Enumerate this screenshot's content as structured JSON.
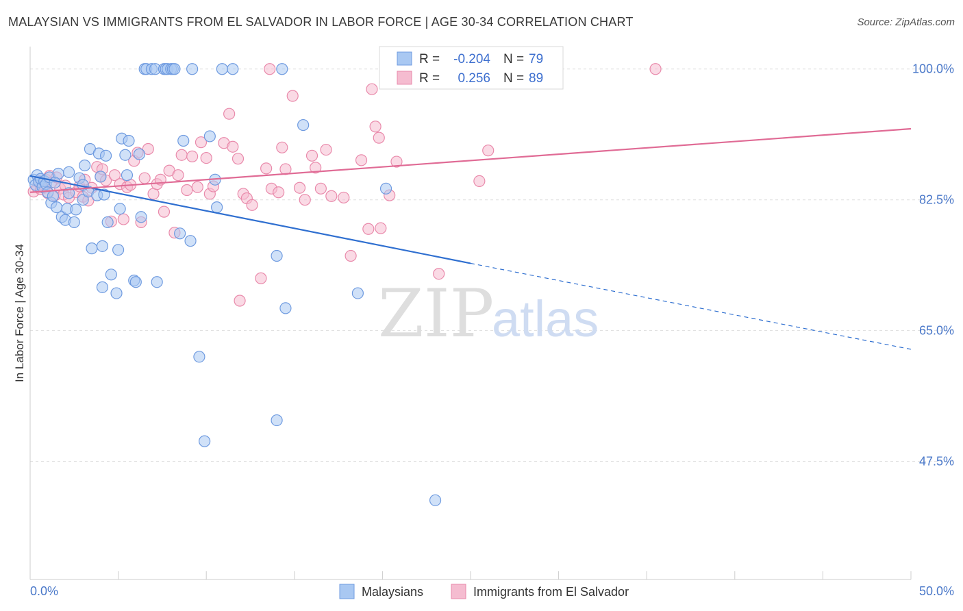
{
  "title": "MALAYSIAN VS IMMIGRANTS FROM EL SALVADOR IN LABOR FORCE | AGE 30-34 CORRELATION CHART",
  "source": "Source: ZipAtlas.com",
  "colors": {
    "blue_fill": "#a9c8f2",
    "blue_stroke": "#6f9be0",
    "blue_line": "#2f6fd0",
    "pink_fill": "#f5bcd0",
    "pink_stroke": "#e98aab",
    "pink_line": "#e06b95",
    "axis_label": "#4a78c9",
    "grid": "#dddddd"
  },
  "legend": {
    "r_label": "R =",
    "n_label": "N =",
    "rows": [
      {
        "series": "blue",
        "r": "-0.204",
        "n": "79"
      },
      {
        "series": "pink",
        "r": "0.256",
        "n": "89"
      }
    ]
  },
  "watermark": {
    "zip": "ZIP",
    "atlas": "atlas"
  },
  "chart_data": {
    "type": "scatter",
    "title": "MALAYSIAN VS IMMIGRANTS FROM EL SALVADOR IN LABOR FORCE | AGE 30-34 CORRELATION CHART",
    "xlabel": "",
    "ylabel": "In Labor Force | Age 30-34",
    "xlim": [
      0,
      50
    ],
    "ylim": [
      31.7,
      103
    ],
    "x_tick_labels": [
      "0.0%",
      "50.0%"
    ],
    "y_ticks": [
      47.5,
      65.0,
      82.5,
      100.0
    ],
    "y_tick_labels": [
      "47.5%",
      "65.0%",
      "82.5%",
      "100.0%"
    ],
    "grid": true,
    "legend_position": "bottom-center",
    "series": [
      {
        "name": "Malaysians",
        "r": -0.204,
        "n": 79,
        "trend": {
          "x0": 0,
          "y0": 85.7,
          "x1": 25,
          "y1": 74.0,
          "dash_x1": 50,
          "dash_y1": 62.5
        },
        "points": [
          [
            0.2,
            85.2
          ],
          [
            0.3,
            84.5
          ],
          [
            0.4,
            85.8
          ],
          [
            0.5,
            84.9
          ],
          [
            0.6,
            85.3
          ],
          [
            0.7,
            84.2
          ],
          [
            0.8,
            85.0
          ],
          [
            0.9,
            84.6
          ],
          [
            1.0,
            83.5
          ],
          [
            1.1,
            85.5
          ],
          [
            1.2,
            82.1
          ],
          [
            1.3,
            83.0
          ],
          [
            1.5,
            81.5
          ],
          [
            1.6,
            86.0
          ],
          [
            1.8,
            80.2
          ],
          [
            2.0,
            79.8
          ],
          [
            2.1,
            81.3
          ],
          [
            2.2,
            83.4
          ],
          [
            2.5,
            79.5
          ],
          [
            2.6,
            81.2
          ],
          [
            2.8,
            85.4
          ],
          [
            3.0,
            82.5
          ],
          [
            3.1,
            87.1
          ],
          [
            3.3,
            83.6
          ],
          [
            3.4,
            89.3
          ],
          [
            3.5,
            76.0
          ],
          [
            3.8,
            83.1
          ],
          [
            3.9,
            88.7
          ],
          [
            4.0,
            85.6
          ],
          [
            4.1,
            70.8
          ],
          [
            4.2,
            83.2
          ],
          [
            4.3,
            88.4
          ],
          [
            4.4,
            79.5
          ],
          [
            4.6,
            72.5
          ],
          [
            4.9,
            70.0
          ],
          [
            5.0,
            75.8
          ],
          [
            5.1,
            81.3
          ],
          [
            5.2,
            90.7
          ],
          [
            5.4,
            88.5
          ],
          [
            5.5,
            85.8
          ],
          [
            5.6,
            90.4
          ],
          [
            5.9,
            71.7
          ],
          [
            6.2,
            88.6
          ],
          [
            6.3,
            80.2
          ],
          [
            6.5,
            100.0
          ],
          [
            6.6,
            100.0
          ],
          [
            6.9,
            100.0
          ],
          [
            7.1,
            100.0
          ],
          [
            7.6,
            100.0
          ],
          [
            7.7,
            100.0
          ],
          [
            7.8,
            100.0
          ],
          [
            8.0,
            100.0
          ],
          [
            8.1,
            100.0
          ],
          [
            8.2,
            100.0
          ],
          [
            8.5,
            78.0
          ],
          [
            8.7,
            90.4
          ],
          [
            9.1,
            77.0
          ],
          [
            9.6,
            61.5
          ],
          [
            9.9,
            50.2
          ],
          [
            9.2,
            100.0
          ],
          [
            10.2,
            91.0
          ],
          [
            10.5,
            85.2
          ],
          [
            10.6,
            81.5
          ],
          [
            10.9,
            100.0
          ],
          [
            11.5,
            100.0
          ],
          [
            14.0,
            75.0
          ],
          [
            14.0,
            53.0
          ],
          [
            14.3,
            100.0
          ],
          [
            14.5,
            68.0
          ],
          [
            15.5,
            92.5
          ],
          [
            18.6,
            70.0
          ],
          [
            20.2,
            84.0
          ],
          [
            23.0,
            42.3
          ],
          [
            6.0,
            71.5
          ],
          [
            7.2,
            71.5
          ],
          [
            2.2,
            86.2
          ],
          [
            3.0,
            84.5
          ],
          [
            4.1,
            76.3
          ],
          [
            1.4,
            84.8
          ]
        ]
      },
      {
        "name": "Immigrants from El Salvador",
        "r": 0.256,
        "n": 89,
        "trend": {
          "x0": 0,
          "y0": 83.5,
          "x1": 50,
          "y1": 92.0
        },
        "points": [
          [
            0.2,
            83.6
          ],
          [
            0.4,
            84.2
          ],
          [
            0.5,
            85.0
          ],
          [
            0.6,
            83.9
          ],
          [
            0.7,
            84.6
          ],
          [
            0.8,
            84.1
          ],
          [
            0.9,
            85.2
          ],
          [
            1.0,
            83.4
          ],
          [
            1.1,
            85.7
          ],
          [
            1.2,
            84.8
          ],
          [
            1.4,
            83.1
          ],
          [
            1.5,
            85.5
          ],
          [
            1.7,
            84.0
          ],
          [
            1.9,
            83.2
          ],
          [
            2.0,
            84.4
          ],
          [
            2.2,
            82.8
          ],
          [
            2.6,
            83.5
          ],
          [
            2.8,
            84.3
          ],
          [
            3.0,
            82.9
          ],
          [
            3.1,
            85.2
          ],
          [
            3.3,
            82.4
          ],
          [
            3.5,
            84.1
          ],
          [
            3.8,
            86.9
          ],
          [
            4.0,
            85.6
          ],
          [
            4.1,
            86.6
          ],
          [
            4.3,
            85.1
          ],
          [
            4.6,
            79.6
          ],
          [
            4.8,
            85.8
          ],
          [
            5.1,
            84.6
          ],
          [
            5.3,
            79.9
          ],
          [
            5.5,
            84.2
          ],
          [
            5.7,
            84.5
          ],
          [
            5.9,
            87.7
          ],
          [
            6.1,
            88.8
          ],
          [
            6.3,
            79.5
          ],
          [
            6.5,
            85.4
          ],
          [
            6.7,
            89.3
          ],
          [
            7.0,
            83.3
          ],
          [
            7.2,
            84.6
          ],
          [
            7.4,
            85.2
          ],
          [
            7.6,
            80.9
          ],
          [
            7.9,
            86.4
          ],
          [
            8.2,
            78.1
          ],
          [
            8.4,
            85.8
          ],
          [
            8.6,
            88.5
          ],
          [
            8.9,
            83.8
          ],
          [
            9.2,
            88.3
          ],
          [
            9.5,
            84.2
          ],
          [
            9.7,
            90.2
          ],
          [
            10.0,
            88.1
          ],
          [
            10.2,
            83.3
          ],
          [
            10.4,
            84.3
          ],
          [
            11.0,
            90.1
          ],
          [
            11.3,
            94.0
          ],
          [
            11.5,
            89.6
          ],
          [
            11.8,
            88.0
          ],
          [
            12.1,
            83.3
          ],
          [
            12.3,
            82.7
          ],
          [
            12.6,
            81.8
          ],
          [
            13.1,
            72.0
          ],
          [
            13.4,
            86.7
          ],
          [
            13.7,
            84.0
          ],
          [
            14.1,
            83.5
          ],
          [
            14.3,
            89.5
          ],
          [
            14.5,
            86.6
          ],
          [
            14.9,
            96.4
          ],
          [
            15.3,
            84.1
          ],
          [
            15.6,
            82.5
          ],
          [
            16.0,
            88.4
          ],
          [
            16.2,
            86.8
          ],
          [
            16.5,
            84.0
          ],
          [
            16.8,
            89.2
          ],
          [
            17.1,
            83.0
          ],
          [
            17.8,
            82.8
          ],
          [
            18.2,
            75.0
          ],
          [
            18.8,
            87.8
          ],
          [
            19.2,
            78.6
          ],
          [
            19.6,
            92.3
          ],
          [
            19.8,
            90.8
          ],
          [
            20.4,
            83.1
          ],
          [
            20.8,
            87.6
          ],
          [
            23.2,
            72.6
          ],
          [
            25.5,
            85.0
          ],
          [
            26.0,
            89.1
          ],
          [
            13.6,
            100.0
          ],
          [
            35.5,
            100.0
          ],
          [
            19.4,
            97.3
          ],
          [
            19.9,
            78.7
          ],
          [
            11.9,
            69.0
          ]
        ]
      }
    ]
  }
}
